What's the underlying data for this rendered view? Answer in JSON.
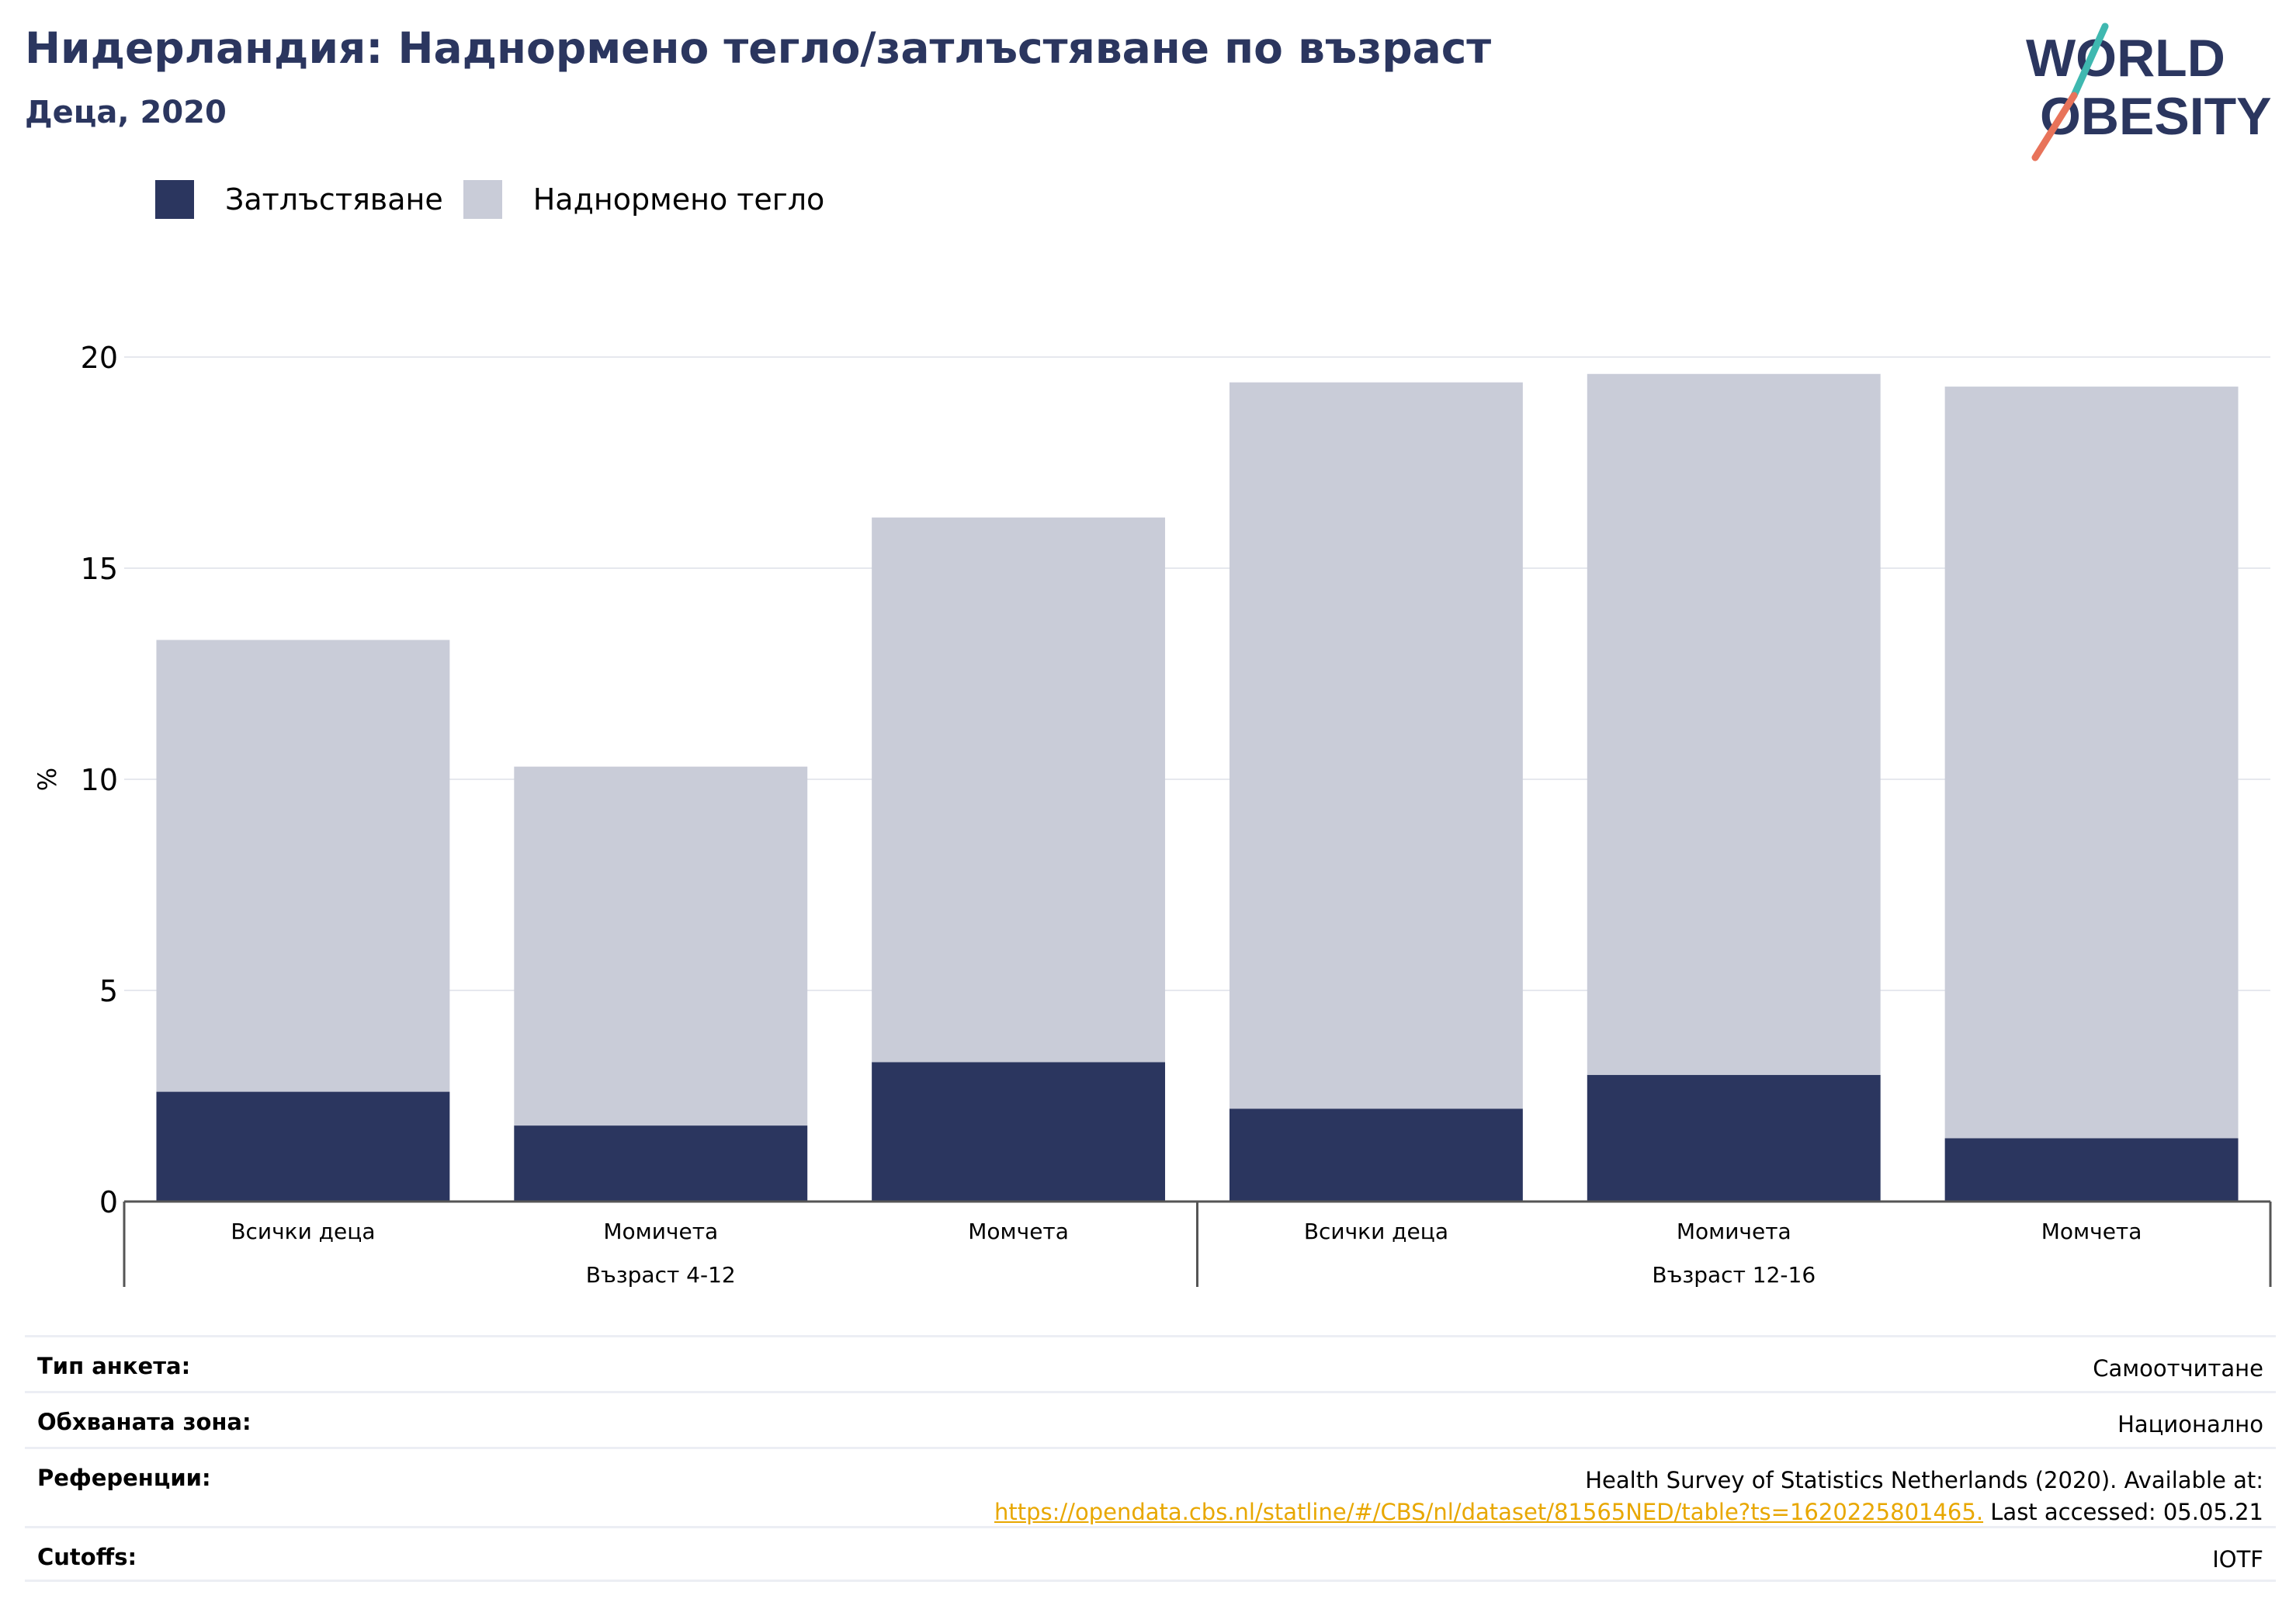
{
  "header": {
    "title": "Нидерландия: Наднормено тегло/затлъстяване по възраст",
    "subtitle": "Деца, 2020"
  },
  "logo": {
    "line1": "WORLD",
    "line2": "OBESITY",
    "colors": {
      "text": "#2b365f",
      "slash_top": "#3fb8b0",
      "slash_bottom": "#e8735a"
    }
  },
  "legend": [
    {
      "label": "Затлъстяване",
      "color": "#2b365f"
    },
    {
      "label": "Наднормено тегло",
      "color": "#c9ccd8"
    }
  ],
  "chart_data": {
    "type": "bar",
    "stacked": true,
    "ylabel": "%",
    "ylim": [
      0,
      20
    ],
    "yticks": [
      0,
      5,
      10,
      15,
      20
    ],
    "grid": true,
    "legend_position": "top-left",
    "categories": [
      "Всички деца",
      "Момичета",
      "Момчета",
      "Всички деца",
      "Момичета",
      "Момчета"
    ],
    "groups": [
      {
        "label": "Възраст 4-12",
        "span": 3
      },
      {
        "label": "Възраст 12-16",
        "span": 3
      }
    ],
    "series": [
      {
        "name": "Затлъстяване",
        "color": "#2b365f",
        "values": [
          2.6,
          1.8,
          3.3,
          2.2,
          3.0,
          1.5
        ]
      },
      {
        "name": "Наднормено тегло",
        "color": "#c9ccd8",
        "values": [
          10.7,
          8.5,
          12.9,
          17.2,
          16.6,
          17.8
        ]
      }
    ]
  },
  "info": {
    "survey_type": {
      "label": "Тип анкета:",
      "value": "Самоотчитане"
    },
    "coverage": {
      "label": "Обхваната зона:",
      "value": "Национално"
    },
    "references": {
      "label": "Референции:",
      "text": "Health Survey of Statistics Netherlands (2020). Available at:",
      "link": "https://opendata.cbs.nl/statline/#/CBS/nl/dataset/81565NED/table?ts=1620225801465.",
      "suffix": " Last accessed: 05.05.21"
    },
    "cutoffs": {
      "label": "Cutoffs:",
      "value": "IOTF"
    }
  }
}
